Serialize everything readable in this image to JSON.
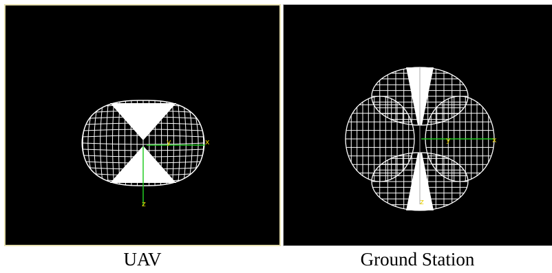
{
  "colors": {
    "background": "#000000",
    "wire": "#ffffff",
    "axis_x": "#22cc22",
    "axis_label": "#e8d000",
    "frame": "#e7e0b0"
  },
  "panels": [
    {
      "caption": "UAV",
      "axis_labels": {
        "x": "x",
        "y": "y",
        "z": "z"
      }
    },
    {
      "caption": "Ground Station",
      "axis_labels": {
        "x": "x",
        "y": "y",
        "z": "z"
      }
    }
  ]
}
